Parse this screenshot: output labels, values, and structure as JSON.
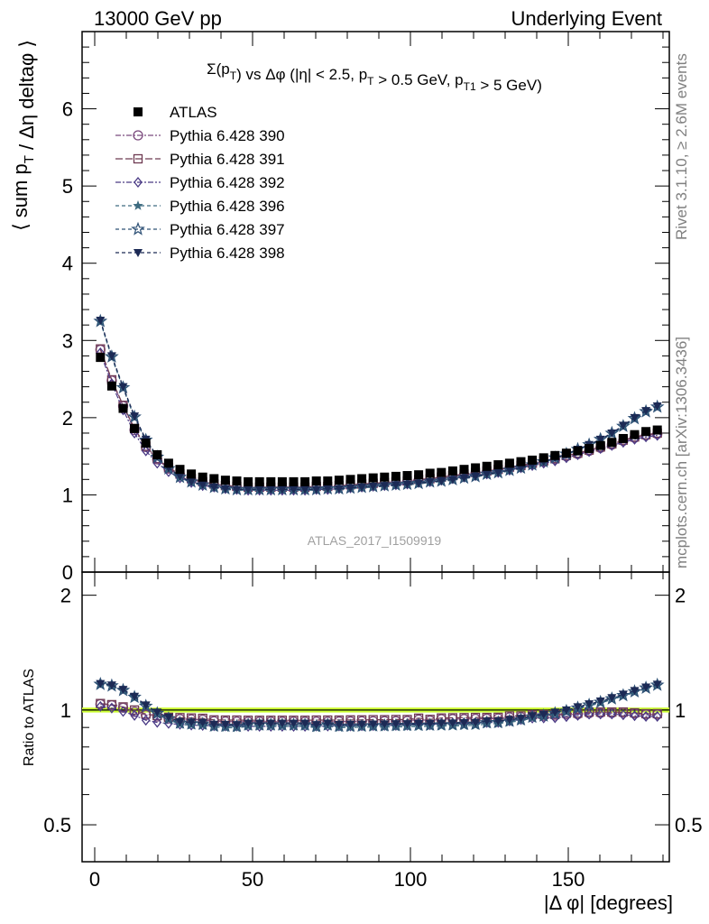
{
  "header": {
    "left": "13000 GeV pp",
    "right": "Underlying Event"
  },
  "side_labels": {
    "rivet": "Rivet 3.1.10, ≥ 2.6M events",
    "mcplots": "mcplots.cern.ch [arXiv:1306.3436]"
  },
  "analysis_label": "ATLAS_2017_I1509919",
  "colors": {
    "atlas": "#000000",
    "p390": "#7b4a7d",
    "p391": "#6e3a52",
    "p392": "#4a3a85",
    "p396": "#3d6b80",
    "p397": "#2d5075",
    "p398": "#1c2a55",
    "ref_band": "#ccff33"
  },
  "chart_data": [
    {
      "type": "scatter",
      "title": "Σ(p_T) vs Δφ (|η| < 2.5, p_T > 0.5 GeV, p_T1 > 5 GeV)",
      "ylabel": "⟨ sum p_T / Δη deltaφ ⟩",
      "xlim": [
        -4,
        182
      ],
      "ylim": [
        0,
        7
      ],
      "y_ticks": [
        0,
        1,
        2,
        3,
        4,
        5,
        6
      ],
      "legend_position": "top-left",
      "x": [
        1.8,
        5.4,
        9,
        12.6,
        16.2,
        19.8,
        23.4,
        27,
        30.6,
        34.2,
        37.8,
        41.4,
        45,
        48.6,
        52.2,
        55.8,
        59.4,
        63,
        66.6,
        70.2,
        73.8,
        77.4,
        81,
        84.6,
        88.2,
        91.8,
        95.4,
        99,
        102.6,
        106.2,
        109.8,
        113.4,
        117,
        120.6,
        124.2,
        127.8,
        131.4,
        135,
        138.6,
        142.2,
        145.8,
        149.4,
        153,
        156.6,
        160.2,
        163.8,
        167.4,
        171,
        174.6,
        178.2
      ],
      "series": [
        {
          "name": "ATLAS",
          "marker": "square-filled",
          "values": [
            2.78,
            2.41,
            2.12,
            1.86,
            1.67,
            1.52,
            1.41,
            1.33,
            1.27,
            1.23,
            1.21,
            1.19,
            1.18,
            1.17,
            1.17,
            1.17,
            1.17,
            1.17,
            1.17,
            1.18,
            1.18,
            1.19,
            1.2,
            1.21,
            1.22,
            1.23,
            1.24,
            1.25,
            1.26,
            1.28,
            1.29,
            1.31,
            1.33,
            1.35,
            1.37,
            1.39,
            1.41,
            1.43,
            1.45,
            1.48,
            1.51,
            1.54,
            1.57,
            1.6,
            1.64,
            1.68,
            1.73,
            1.78,
            1.82,
            1.84
          ]
        },
        {
          "name": "Pythia 6.428 390",
          "marker": "circle-open",
          "values": [
            2.88,
            2.48,
            2.15,
            1.84,
            1.62,
            1.46,
            1.34,
            1.26,
            1.2,
            1.16,
            1.13,
            1.11,
            1.1,
            1.09,
            1.09,
            1.09,
            1.09,
            1.09,
            1.09,
            1.1,
            1.1,
            1.11,
            1.12,
            1.13,
            1.14,
            1.15,
            1.16,
            1.17,
            1.19,
            1.2,
            1.22,
            1.24,
            1.26,
            1.28,
            1.3,
            1.32,
            1.35,
            1.37,
            1.4,
            1.43,
            1.46,
            1.5,
            1.53,
            1.57,
            1.61,
            1.65,
            1.7,
            1.74,
            1.77,
            1.79
          ]
        },
        {
          "name": "Pythia 6.428 391",
          "marker": "square-open",
          "values": [
            2.89,
            2.49,
            2.16,
            1.86,
            1.63,
            1.47,
            1.35,
            1.27,
            1.21,
            1.17,
            1.14,
            1.12,
            1.11,
            1.1,
            1.1,
            1.1,
            1.1,
            1.1,
            1.1,
            1.11,
            1.11,
            1.12,
            1.13,
            1.14,
            1.15,
            1.16,
            1.17,
            1.18,
            1.2,
            1.21,
            1.23,
            1.25,
            1.27,
            1.29,
            1.31,
            1.33,
            1.36,
            1.38,
            1.41,
            1.44,
            1.47,
            1.51,
            1.54,
            1.58,
            1.62,
            1.66,
            1.71,
            1.75,
            1.78,
            1.8
          ]
        },
        {
          "name": "Pythia 6.428 392",
          "marker": "diamond-open",
          "values": [
            2.84,
            2.44,
            2.1,
            1.8,
            1.57,
            1.41,
            1.3,
            1.22,
            1.16,
            1.12,
            1.1,
            1.08,
            1.07,
            1.06,
            1.06,
            1.06,
            1.06,
            1.06,
            1.06,
            1.07,
            1.07,
            1.08,
            1.09,
            1.1,
            1.11,
            1.12,
            1.13,
            1.14,
            1.16,
            1.17,
            1.19,
            1.21,
            1.23,
            1.25,
            1.27,
            1.29,
            1.32,
            1.35,
            1.38,
            1.41,
            1.44,
            1.48,
            1.52,
            1.56,
            1.6,
            1.64,
            1.68,
            1.72,
            1.75,
            1.77
          ]
        },
        {
          "name": "Pythia 6.428 396",
          "marker": "star-filled",
          "values": [
            3.24,
            2.78,
            2.38,
            2.0,
            1.7,
            1.48,
            1.33,
            1.22,
            1.16,
            1.12,
            1.09,
            1.07,
            1.06,
            1.06,
            1.06,
            1.06,
            1.06,
            1.06,
            1.06,
            1.06,
            1.07,
            1.07,
            1.08,
            1.09,
            1.1,
            1.11,
            1.12,
            1.13,
            1.14,
            1.16,
            1.17,
            1.19,
            1.21,
            1.23,
            1.26,
            1.28,
            1.31,
            1.34,
            1.38,
            1.42,
            1.47,
            1.52,
            1.58,
            1.64,
            1.71,
            1.79,
            1.88,
            1.98,
            2.07,
            2.13
          ]
        },
        {
          "name": "Pythia 6.428 397",
          "marker": "star-open",
          "values": [
            3.25,
            2.79,
            2.39,
            2.01,
            1.71,
            1.49,
            1.34,
            1.23,
            1.17,
            1.13,
            1.1,
            1.08,
            1.07,
            1.07,
            1.07,
            1.07,
            1.07,
            1.07,
            1.07,
            1.07,
            1.08,
            1.08,
            1.09,
            1.1,
            1.11,
            1.12,
            1.13,
            1.14,
            1.15,
            1.17,
            1.18,
            1.2,
            1.22,
            1.24,
            1.27,
            1.29,
            1.32,
            1.35,
            1.39,
            1.43,
            1.48,
            1.53,
            1.59,
            1.65,
            1.72,
            1.8,
            1.89,
            1.99,
            2.08,
            2.14
          ]
        },
        {
          "name": "Pythia 6.428 398",
          "marker": "triangle-down-filled",
          "values": [
            3.26,
            2.8,
            2.4,
            2.02,
            1.72,
            1.5,
            1.35,
            1.24,
            1.17,
            1.13,
            1.1,
            1.08,
            1.07,
            1.07,
            1.07,
            1.07,
            1.07,
            1.07,
            1.07,
            1.07,
            1.08,
            1.08,
            1.09,
            1.1,
            1.11,
            1.12,
            1.13,
            1.14,
            1.15,
            1.17,
            1.18,
            1.2,
            1.22,
            1.24,
            1.27,
            1.29,
            1.32,
            1.35,
            1.39,
            1.43,
            1.48,
            1.53,
            1.59,
            1.65,
            1.72,
            1.8,
            1.9,
            2.0,
            2.09,
            2.15
          ]
        }
      ]
    },
    {
      "type": "scatter",
      "xlabel": "|Δ φ| [degrees]",
      "ylabel": "Ratio to ATLAS",
      "log_y": true,
      "ylim": [
        0.4,
        2.3
      ],
      "y_ticks": [
        0.5,
        1,
        2
      ],
      "x_ticks": [
        0,
        50,
        100,
        150
      ],
      "xlim": [
        -4,
        182
      ],
      "reference_band": [
        0.985,
        1.015
      ],
      "series": [
        {
          "name": "Pythia 6.428 390",
          "values": [
            1.036,
            1.029,
            1.014,
            0.989,
            0.97,
            0.961,
            0.95,
            0.947,
            0.945,
            0.943,
            0.934,
            0.933,
            0.932,
            0.932,
            0.932,
            0.932,
            0.932,
            0.932,
            0.932,
            0.932,
            0.932,
            0.933,
            0.933,
            0.934,
            0.934,
            0.935,
            0.935,
            0.936,
            0.944,
            0.938,
            0.946,
            0.947,
            0.947,
            0.948,
            0.949,
            0.95,
            0.957,
            0.958,
            0.966,
            0.966,
            0.967,
            0.974,
            0.975,
            0.981,
            0.982,
            0.982,
            0.983,
            0.978,
            0.973,
            0.973
          ]
        },
        {
          "name": "Pythia 6.428 391",
          "values": [
            1.04,
            1.033,
            1.019,
            1.0,
            0.976,
            0.967,
            0.957,
            0.955,
            0.953,
            0.951,
            0.942,
            0.941,
            0.941,
            0.94,
            0.94,
            0.94,
            0.94,
            0.94,
            0.94,
            0.941,
            0.941,
            0.941,
            0.942,
            0.942,
            0.943,
            0.943,
            0.944,
            0.944,
            0.952,
            0.945,
            0.953,
            0.954,
            0.955,
            0.956,
            0.956,
            0.957,
            0.965,
            0.965,
            0.972,
            0.973,
            0.974,
            0.981,
            0.981,
            0.988,
            0.988,
            0.988,
            0.988,
            0.983,
            0.978,
            0.978
          ]
        },
        {
          "name": "Pythia 6.428 392",
          "values": [
            1.022,
            1.012,
            0.991,
            0.968,
            0.94,
            0.928,
            0.922,
            0.917,
            0.913,
            0.911,
            0.909,
            0.908,
            0.907,
            0.906,
            0.906,
            0.906,
            0.906,
            0.906,
            0.906,
            0.907,
            0.907,
            0.908,
            0.908,
            0.909,
            0.91,
            0.911,
            0.911,
            0.912,
            0.921,
            0.914,
            0.922,
            0.924,
            0.925,
            0.926,
            0.927,
            0.928,
            0.936,
            0.944,
            0.952,
            0.953,
            0.954,
            0.961,
            0.968,
            0.975,
            0.976,
            0.976,
            0.971,
            0.966,
            0.962,
            0.962
          ]
        },
        {
          "name": "Pythia 6.428 396",
          "values": [
            1.165,
            1.154,
            1.123,
            1.075,
            1.018,
            0.974,
            0.943,
            0.917,
            0.913,
            0.911,
            0.901,
            0.899,
            0.898,
            0.906,
            0.906,
            0.906,
            0.906,
            0.906,
            0.906,
            0.898,
            0.907,
            0.899,
            0.9,
            0.901,
            0.902,
            0.902,
            0.903,
            0.904,
            0.905,
            0.906,
            0.907,
            0.908,
            0.91,
            0.911,
            0.92,
            0.921,
            0.929,
            0.937,
            0.952,
            0.959,
            0.974,
            0.987,
            1.006,
            1.025,
            1.043,
            1.065,
            1.087,
            1.112,
            1.137,
            1.158
          ]
        },
        {
          "name": "Pythia 6.428 397",
          "values": [
            1.169,
            1.158,
            1.127,
            1.081,
            1.024,
            0.98,
            0.95,
            0.925,
            0.921,
            0.919,
            0.909,
            0.908,
            0.907,
            0.915,
            0.915,
            0.915,
            0.915,
            0.915,
            0.915,
            0.907,
            0.915,
            0.908,
            0.908,
            0.909,
            0.91,
            0.911,
            0.912,
            0.913,
            0.913,
            0.914,
            0.915,
            0.916,
            0.918,
            0.919,
            0.927,
            0.928,
            0.936,
            0.944,
            0.959,
            0.966,
            0.98,
            0.994,
            1.013,
            1.031,
            1.049,
            1.071,
            1.092,
            1.118,
            1.143,
            1.163
          ]
        },
        {
          "name": "Pythia 6.428 398",
          "values": [
            1.173,
            1.162,
            1.132,
            1.086,
            1.03,
            0.987,
            0.957,
            0.932,
            0.929,
            0.927,
            0.917,
            0.916,
            0.915,
            0.923,
            0.923,
            0.923,
            0.923,
            0.923,
            0.923,
            0.915,
            0.923,
            0.916,
            0.917,
            0.917,
            0.918,
            0.919,
            0.92,
            0.92,
            0.921,
            0.922,
            0.923,
            0.924,
            0.926,
            0.927,
            0.935,
            0.935,
            0.943,
            0.951,
            0.966,
            0.973,
            0.987,
            1.0,
            1.019,
            1.037,
            1.055,
            1.077,
            1.1,
            1.124,
            1.148,
            1.168
          ]
        }
      ]
    }
  ]
}
